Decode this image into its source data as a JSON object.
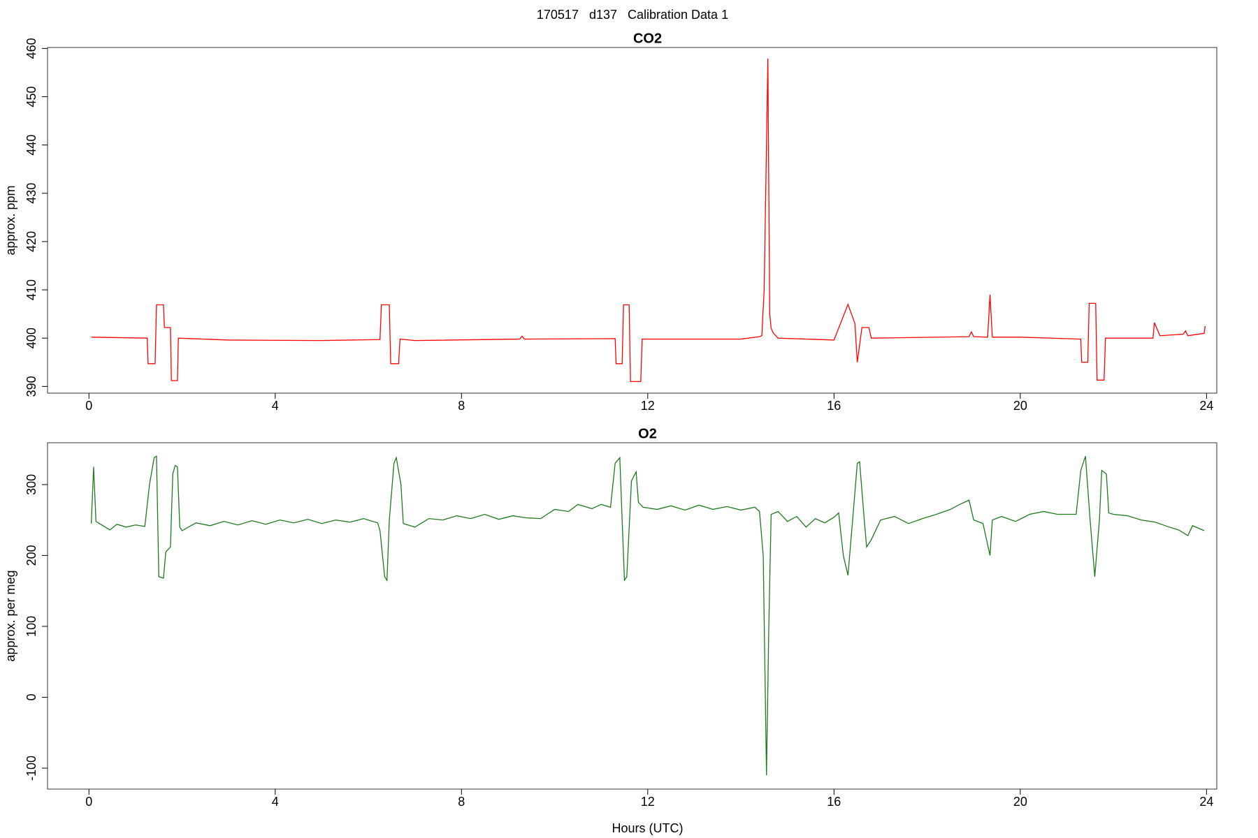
{
  "title": "170517   d137   Calibration Data 1",
  "chart_data": [
    {
      "type": "line",
      "title": "CO2",
      "ylabel": "approx. ppm",
      "color": "#ff0000",
      "xlim": [
        -0.89,
        24.22
      ],
      "ylim": [
        388.6,
        460.2
      ],
      "xticks": [
        0,
        4,
        8,
        12,
        16,
        20,
        24
      ],
      "yticks": [
        390,
        400,
        410,
        420,
        430,
        440,
        450,
        460
      ],
      "x": [
        0.05,
        1.25,
        1.27,
        1.42,
        1.45,
        1.6,
        1.62,
        1.75,
        1.77,
        1.9,
        1.92,
        3,
        5,
        6.25,
        6.28,
        6.45,
        6.48,
        6.65,
        6.68,
        7,
        9.25,
        9.3,
        9.35,
        11.3,
        11.32,
        11.45,
        11.48,
        11.6,
        11.63,
        11.85,
        11.88,
        14,
        14.4,
        14.45,
        14.5,
        14.55,
        14.58,
        14.6,
        14.62,
        14.65,
        14.7,
        14.8,
        16,
        16.3,
        16.45,
        16.5,
        16.6,
        16.75,
        16.8,
        18.9,
        18.95,
        19.0,
        19.3,
        19.35,
        19.4,
        20,
        21.3,
        21.32,
        21.45,
        21.48,
        21.62,
        21.65,
        21.8,
        21.83,
        22.85,
        22.88,
        23,
        23.5,
        23.55,
        23.6,
        23.95,
        23.97
      ],
      "values": [
        400.2,
        400,
        394.7,
        394.7,
        406.9,
        406.9,
        402.2,
        402.2,
        391.2,
        391.2,
        400,
        399.6,
        399.5,
        399.7,
        406.9,
        406.9,
        394.7,
        394.7,
        399.8,
        399.5,
        399.8,
        400.4,
        399.8,
        399.9,
        394.7,
        394.7,
        406.9,
        406.9,
        391,
        391,
        399.8,
        399.8,
        400.3,
        400.5,
        410,
        440,
        457.9,
        430,
        405,
        402,
        401,
        400,
        399.6,
        407,
        403,
        395,
        402.2,
        402.2,
        400,
        400.3,
        401.3,
        400.3,
        400.2,
        409,
        400.2,
        400.2,
        399.8,
        395,
        395,
        407.2,
        407.2,
        391.3,
        391.3,
        400,
        400,
        403.2,
        400.5,
        400.8,
        401.5,
        400.5,
        401,
        402.5
      ]
    },
    {
      "type": "line",
      "title": "O2",
      "ylabel": "approx. per meg",
      "xlabel": "Hours (UTC)",
      "color": "#1e7a1e",
      "xlim": [
        -0.89,
        24.22
      ],
      "ylim": [
        -129.6,
        359
      ],
      "xticks": [
        0,
        4,
        8,
        12,
        16,
        20,
        24
      ],
      "yticks": [
        -100,
        0,
        100,
        200,
        300
      ],
      "x": [
        0.05,
        0.1,
        0.15,
        0.3,
        0.45,
        0.6,
        0.8,
        1.0,
        1.2,
        1.3,
        1.4,
        1.45,
        1.5,
        1.6,
        1.65,
        1.75,
        1.8,
        1.85,
        1.9,
        1.95,
        2.0,
        2.3,
        2.6,
        2.9,
        3.2,
        3.5,
        3.8,
        4.1,
        4.4,
        4.7,
        5.0,
        5.3,
        5.6,
        5.9,
        6.2,
        6.25,
        6.35,
        6.4,
        6.45,
        6.55,
        6.6,
        6.7,
        6.75,
        7.0,
        7.3,
        7.6,
        7.9,
        8.2,
        8.5,
        8.8,
        9.1,
        9.4,
        9.7,
        10.0,
        10.3,
        10.5,
        10.8,
        11.0,
        11.2,
        11.3,
        11.4,
        11.45,
        11.5,
        11.55,
        11.65,
        11.75,
        11.8,
        11.9,
        12.2,
        12.5,
        12.8,
        13.1,
        13.4,
        13.7,
        14.0,
        14.3,
        14.4,
        14.48,
        14.55,
        14.6,
        14.65,
        14.8,
        15.0,
        15.2,
        15.4,
        15.6,
        15.8,
        16.0,
        16.1,
        16.2,
        16.3,
        16.4,
        16.5,
        16.55,
        16.65,
        16.7,
        16.8,
        17.0,
        17.3,
        17.6,
        17.9,
        18.2,
        18.5,
        18.7,
        18.9,
        19.0,
        19.2,
        19.35,
        19.4,
        19.6,
        19.9,
        20.2,
        20.5,
        20.8,
        21.2,
        21.3,
        21.4,
        21.5,
        21.6,
        21.7,
        21.75,
        21.85,
        21.9,
        22.0,
        22.3,
        22.6,
        22.9,
        23.2,
        23.4,
        23.6,
        23.7,
        23.95
      ],
      "values": [
        245,
        325,
        248,
        242,
        236,
        244,
        240,
        243,
        241,
        300,
        338,
        340,
        170,
        168,
        205,
        212,
        315,
        327,
        325,
        240,
        235,
        246,
        242,
        248,
        243,
        249,
        244,
        250,
        246,
        251,
        245,
        250,
        247,
        252,
        246,
        235,
        170,
        165,
        250,
        330,
        338,
        300,
        245,
        240,
        252,
        250,
        256,
        252,
        258,
        251,
        256,
        253,
        252,
        265,
        262,
        272,
        266,
        272,
        268,
        330,
        338,
        250,
        165,
        170,
        305,
        318,
        275,
        268,
        265,
        270,
        264,
        271,
        265,
        269,
        264,
        268,
        262,
        200,
        -110,
        100,
        258,
        262,
        248,
        255,
        240,
        252,
        246,
        254,
        260,
        200,
        172,
        250,
        330,
        332,
        250,
        212,
        222,
        250,
        255,
        245,
        252,
        258,
        265,
        272,
        278,
        250,
        245,
        200,
        250,
        255,
        248,
        258,
        262,
        258,
        258,
        320,
        340,
        250,
        170,
        250,
        320,
        315,
        260,
        258,
        256,
        250,
        247,
        240,
        236,
        228,
        242,
        235
      ]
    }
  ]
}
